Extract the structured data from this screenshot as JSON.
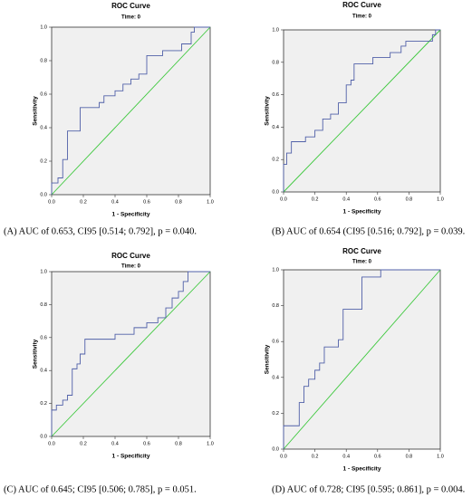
{
  "chart_data": [
    {
      "type": "line",
      "title": "ROC Curve",
      "subtitle": "Time: 0",
      "xlabel": "1 - Specificity",
      "ylabel": "Sensitivity",
      "caption": "(A) AUC of 0.653, CI95 [0.514; 0.792], p = 0.040.",
      "xlim": [
        0,
        1
      ],
      "ylim": [
        0,
        1
      ],
      "xticks": [
        {
          "value": 0,
          "label": "0.0"
        },
        {
          "value": 0.2,
          "label": "0.2"
        },
        {
          "value": 0.4,
          "label": "0.4"
        },
        {
          "value": 0.6,
          "label": "0.6"
        },
        {
          "value": 0.8,
          "label": "0.8"
        },
        {
          "value": 1,
          "label": "1.0"
        }
      ],
      "yticks": [
        {
          "value": 0,
          "label": "0.0"
        },
        {
          "value": 0.2,
          "label": "0.2"
        },
        {
          "value": 0.4,
          "label": "0.4"
        },
        {
          "value": 0.6,
          "label": "0.6"
        },
        {
          "value": 0.8,
          "label": "0.8"
        },
        {
          "value": 1,
          "label": "1.0"
        }
      ],
      "series": [
        {
          "color": "#5060a8",
          "x": [
            0,
            0,
            0.04,
            0.04,
            0.07,
            0.07,
            0.1,
            0.1,
            0.18,
            0.18,
            0.3,
            0.3,
            0.33,
            0.33,
            0.4,
            0.4,
            0.45,
            0.45,
            0.5,
            0.5,
            0.55,
            0.55,
            0.6,
            0.6,
            0.7,
            0.7,
            0.82,
            0.82,
            0.88,
            0.88,
            0.9,
            0.9,
            1
          ],
          "values": [
            0,
            0.07,
            0.07,
            0.1,
            0.1,
            0.21,
            0.21,
            0.38,
            0.38,
            0.52,
            0.52,
            0.55,
            0.55,
            0.59,
            0.59,
            0.62,
            0.62,
            0.66,
            0.66,
            0.69,
            0.69,
            0.72,
            0.72,
            0.83,
            0.83,
            0.86,
            0.86,
            0.9,
            0.9,
            0.97,
            0.97,
            1,
            1
          ]
        },
        {
          "color": "#3cc83c",
          "x": [
            0,
            1
          ],
          "values": [
            0,
            1
          ]
        }
      ]
    },
    {
      "type": "line",
      "title": "ROC Curve",
      "subtitle": "Time: 0",
      "xlabel": "1 - Specificity",
      "ylabel": "Sensitivity",
      "caption": "(B) AUC of 0.654 (CI95 [0.516; 0.792], p = 0.039.",
      "xlim": [
        0,
        1
      ],
      "ylim": [
        0,
        1
      ],
      "xticks": [
        {
          "value": 0,
          "label": "0.0"
        },
        {
          "value": 0.2,
          "label": "0.2"
        },
        {
          "value": 0.4,
          "label": "0.4"
        },
        {
          "value": 0.6,
          "label": "0.6"
        },
        {
          "value": 0.8,
          "label": "0.8"
        },
        {
          "value": 1,
          "label": "1.0"
        }
      ],
      "yticks": [
        {
          "value": 0,
          "label": "0.0"
        },
        {
          "value": 0.2,
          "label": "0.2"
        },
        {
          "value": 0.4,
          "label": "0.4"
        },
        {
          "value": 0.6,
          "label": "0.6"
        },
        {
          "value": 0.8,
          "label": "0.8"
        },
        {
          "value": 1,
          "label": "1.0"
        }
      ],
      "series": [
        {
          "color": "#5060a8",
          "x": [
            0,
            0,
            0.02,
            0.02,
            0.05,
            0.05,
            0.14,
            0.14,
            0.2,
            0.2,
            0.25,
            0.25,
            0.3,
            0.3,
            0.35,
            0.35,
            0.4,
            0.4,
            0.43,
            0.43,
            0.45,
            0.45,
            0.57,
            0.57,
            0.68,
            0.68,
            0.75,
            0.75,
            0.78,
            0.78,
            0.95,
            0.95,
            0.97,
            0.97,
            1
          ],
          "values": [
            0,
            0.17,
            0.17,
            0.24,
            0.24,
            0.31,
            0.31,
            0.34,
            0.34,
            0.38,
            0.38,
            0.45,
            0.45,
            0.48,
            0.48,
            0.55,
            0.55,
            0.66,
            0.66,
            0.69,
            0.69,
            0.79,
            0.79,
            0.83,
            0.83,
            0.86,
            0.86,
            0.9,
            0.9,
            0.93,
            0.93,
            0.97,
            0.97,
            1,
            1
          ]
        },
        {
          "color": "#3cc83c",
          "x": [
            0,
            1
          ],
          "values": [
            0,
            1
          ]
        }
      ]
    },
    {
      "type": "line",
      "title": "ROC Curve",
      "subtitle": "Time: 0",
      "xlabel": "1 - Specificity",
      "ylabel": "Sensitivity",
      "caption": "(C) AUC of 0.645; CI95 [0.506; 0.785], p = 0.051.",
      "xlim": [
        0,
        1
      ],
      "ylim": [
        0,
        1
      ],
      "xticks": [
        {
          "value": 0,
          "label": "0.0"
        },
        {
          "value": 0.2,
          "label": "0.2"
        },
        {
          "value": 0.4,
          "label": "0.4"
        },
        {
          "value": 0.6,
          "label": "0.6"
        },
        {
          "value": 0.8,
          "label": "0.8"
        },
        {
          "value": 1,
          "label": "1.0"
        }
      ],
      "yticks": [
        {
          "value": 0,
          "label": "0.0"
        },
        {
          "value": 0.2,
          "label": "0.2"
        },
        {
          "value": 0.4,
          "label": "0.4"
        },
        {
          "value": 0.6,
          "label": "0.6"
        },
        {
          "value": 0.8,
          "label": "0.8"
        },
        {
          "value": 1,
          "label": "1.0"
        }
      ],
      "series": [
        {
          "color": "#5060a8",
          "x": [
            0,
            0,
            0.03,
            0.03,
            0.07,
            0.07,
            0.1,
            0.1,
            0.13,
            0.13,
            0.16,
            0.16,
            0.18,
            0.18,
            0.21,
            0.21,
            0.4,
            0.4,
            0.52,
            0.52,
            0.6,
            0.6,
            0.67,
            0.67,
            0.72,
            0.72,
            0.76,
            0.76,
            0.8,
            0.8,
            0.83,
            0.83,
            0.86,
            0.86,
            1
          ],
          "values": [
            0,
            0.16,
            0.16,
            0.19,
            0.19,
            0.22,
            0.22,
            0.25,
            0.25,
            0.41,
            0.41,
            0.44,
            0.44,
            0.5,
            0.5,
            0.59,
            0.59,
            0.62,
            0.62,
            0.66,
            0.66,
            0.69,
            0.69,
            0.72,
            0.72,
            0.78,
            0.78,
            0.84,
            0.84,
            0.88,
            0.88,
            0.94,
            0.94,
            1,
            1
          ]
        },
        {
          "color": "#3cc83c",
          "x": [
            0,
            1
          ],
          "values": [
            0,
            1
          ]
        }
      ]
    },
    {
      "type": "line",
      "title": "ROC Curve",
      "subtitle": "Time: 0",
      "xlabel": "1 - Specificity",
      "ylabel": "Sensitivity",
      "caption": "(D) AUC of 0.728; CI95 [0.595; 0.861], p = 0.004.",
      "xlim": [
        0,
        1
      ],
      "ylim": [
        0,
        1
      ],
      "xticks": [
        {
          "value": 0,
          "label": "0.0"
        },
        {
          "value": 0.2,
          "label": "0.2"
        },
        {
          "value": 0.4,
          "label": "0.4"
        },
        {
          "value": 0.6,
          "label": "0.6"
        },
        {
          "value": 0.8,
          "label": "0.8"
        },
        {
          "value": 1,
          "label": "1.0"
        }
      ],
      "yticks": [
        {
          "value": 0,
          "label": "0.0"
        },
        {
          "value": 0.2,
          "label": "0.2"
        },
        {
          "value": 0.4,
          "label": "0.4"
        },
        {
          "value": 0.6,
          "label": "0.6"
        },
        {
          "value": 0.8,
          "label": "0.8"
        },
        {
          "value": 1,
          "label": "1.0"
        }
      ],
      "series": [
        {
          "color": "#5060a8",
          "x": [
            0,
            0,
            0.1,
            0.1,
            0.13,
            0.13,
            0.16,
            0.16,
            0.2,
            0.2,
            0.23,
            0.23,
            0.26,
            0.26,
            0.35,
            0.35,
            0.38,
            0.38,
            0.5,
            0.5,
            0.62,
            0.62,
            1
          ],
          "values": [
            0,
            0.13,
            0.13,
            0.26,
            0.26,
            0.35,
            0.35,
            0.39,
            0.39,
            0.44,
            0.44,
            0.48,
            0.48,
            0.57,
            0.57,
            0.61,
            0.61,
            0.78,
            0.78,
            0.96,
            0.96,
            1,
            1
          ]
        },
        {
          "color": "#3cc83c",
          "x": [
            0,
            1
          ],
          "values": [
            0,
            1
          ]
        }
      ]
    }
  ]
}
